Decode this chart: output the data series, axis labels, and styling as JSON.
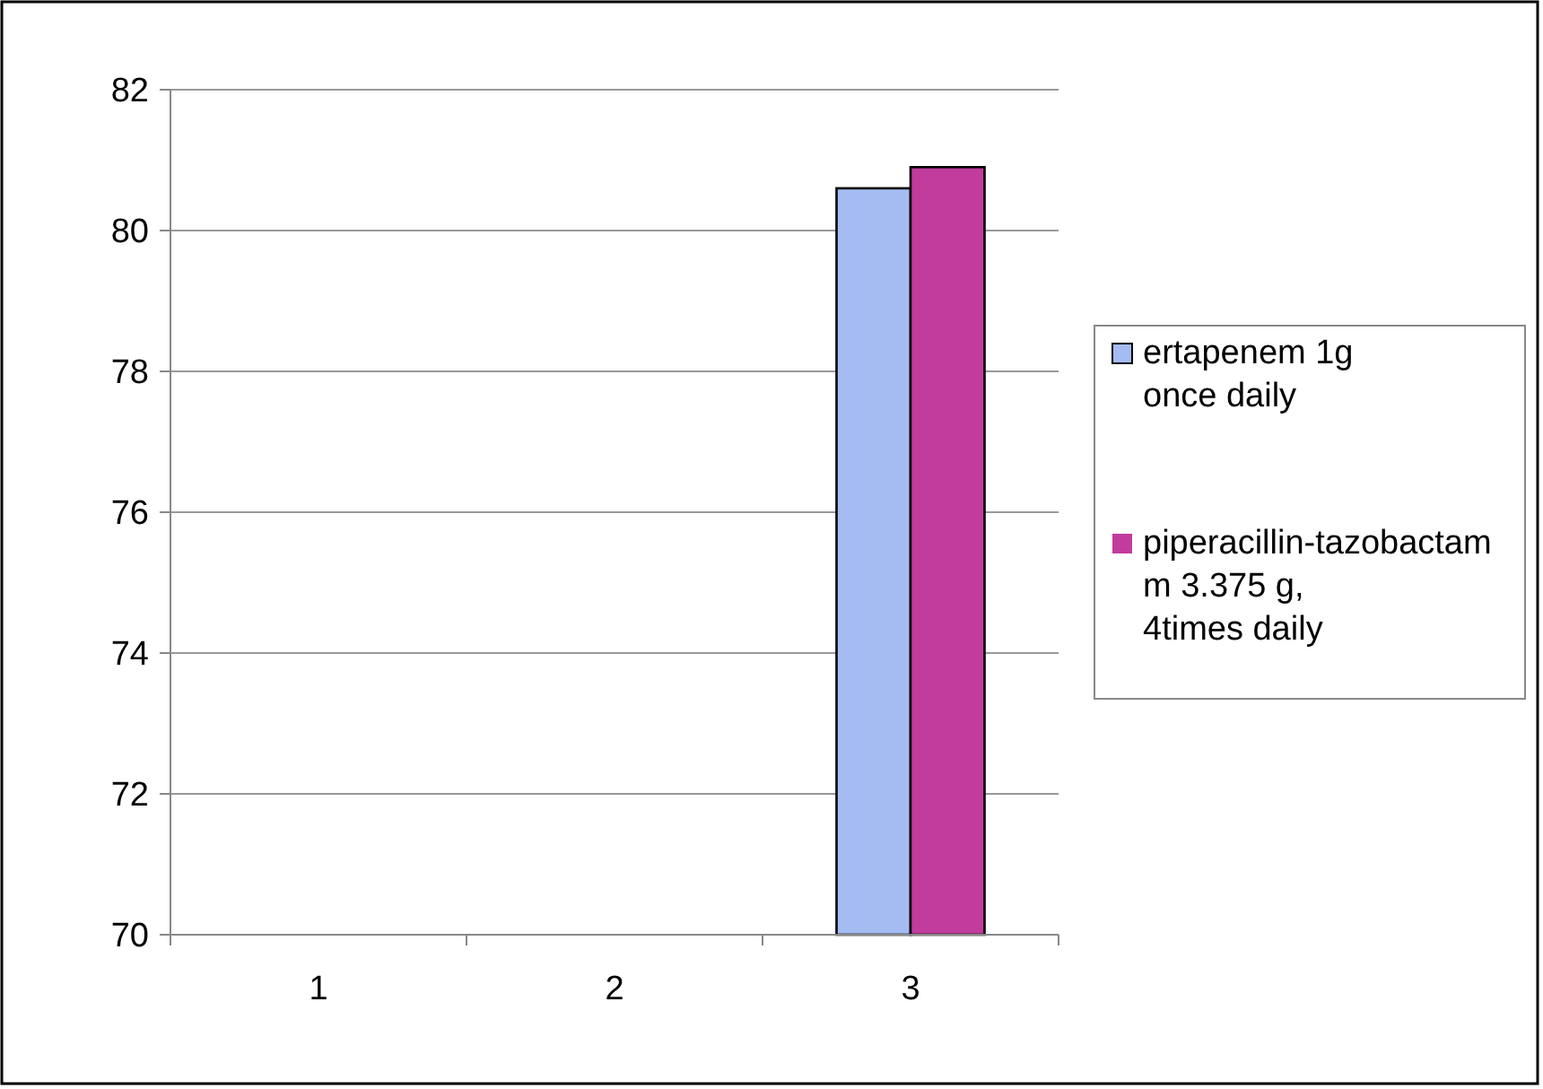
{
  "chart_data": {
    "type": "bar",
    "categories": [
      "1",
      "2",
      "3"
    ],
    "series": [
      {
        "name": "ertapenem 1g once daily",
        "color": "#a4bcf2",
        "values": [
          null,
          null,
          80.6
        ]
      },
      {
        "name": "piperacillin-tazobactam  m 3.375 g, 4times daily",
        "color": "#c13c9c",
        "values": [
          null,
          null,
          80.9
        ]
      }
    ],
    "ylim": [
      70,
      82
    ],
    "yticks": [
      70,
      72,
      74,
      76,
      78,
      80,
      82
    ],
    "grid": "y",
    "legend": "right"
  }
}
